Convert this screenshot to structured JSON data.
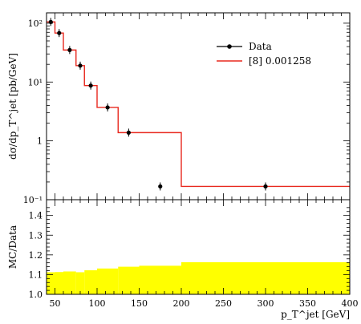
{
  "chart_data": [
    {
      "type": "line",
      "panel": "main",
      "ylabel": "dσ/dp_T^jet [pb/GeV]",
      "yscale": "log",
      "ylim": [
        0.1,
        150
      ],
      "xlim": [
        40,
        400
      ],
      "y_tick_labels": [
        "10⁻¹",
        "1",
        "10¹",
        "10²"
      ],
      "legend": {
        "placement": "top-right",
        "entries": [
          "Data",
          "[8] 0.001258"
        ]
      },
      "series": [
        {
          "name": "Data",
          "style": "points",
          "color": "#000000",
          "points": [
            {
              "x": 45,
              "y": 105
            },
            {
              "x": 55,
              "y": 68
            },
            {
              "x": 67.5,
              "y": 35
            },
            {
              "x": 80,
              "y": 19
            },
            {
              "x": 92.5,
              "y": 8.7
            },
            {
              "x": 112.5,
              "y": 3.7
            },
            {
              "x": 137.5,
              "y": 1.38
            },
            {
              "x": 175,
              "y": 0.168
            },
            {
              "x": 300,
              "y": 0.168
            }
          ]
        },
        {
          "name": "[8] 0.001258",
          "style": "step",
          "color": "#e8281e",
          "bins": [
            {
              "x0": 40,
              "x1": 50,
              "y": 105
            },
            {
              "x0": 50,
              "x1": 60,
              "y": 68
            },
            {
              "x0": 60,
              "x1": 75,
              "y": 35
            },
            {
              "x0": 75,
              "x1": 85,
              "y": 19
            },
            {
              "x0": 85,
              "x1": 100,
              "y": 8.7
            },
            {
              "x0": 100,
              "x1": 125,
              "y": 3.7
            },
            {
              "x0": 125,
              "x1": 150,
              "y": 1.38
            },
            {
              "x0": 150,
              "x1": 200,
              "y": 1.38
            },
            {
              "x0": 200,
              "x1": 400,
              "y": 0.168
            }
          ]
        }
      ]
    },
    {
      "type": "area",
      "panel": "ratio",
      "ylabel": "MC/Data",
      "xlabel": "p_T^jet [GeV]",
      "xlim": [
        40,
        400
      ],
      "ylim": [
        1.0,
        1.48
      ],
      "x_ticks": [
        50,
        100,
        150,
        200,
        250,
        300,
        350,
        400
      ],
      "y_ticks": [
        1.0,
        1.1,
        1.2,
        1.3,
        1.4
      ],
      "x_tick_labels": [
        "50",
        "100",
        "150",
        "200",
        "250",
        "300",
        "350",
        "400"
      ],
      "y_tick_labels": [
        "1.0",
        "1.1",
        "1.2",
        "1.3",
        "1.4"
      ],
      "color": "#ffff00",
      "bins": [
        {
          "x0": 40,
          "x1": 50,
          "y": 1.112
        },
        {
          "x0": 50,
          "x1": 60,
          "y": 1.113
        },
        {
          "x0": 60,
          "x1": 75,
          "y": 1.116
        },
        {
          "x0": 75,
          "x1": 85,
          "y": 1.112
        },
        {
          "x0": 85,
          "x1": 100,
          "y": 1.122
        },
        {
          "x0": 100,
          "x1": 125,
          "y": 1.131
        },
        {
          "x0": 125,
          "x1": 150,
          "y": 1.14
        },
        {
          "x0": 150,
          "x1": 200,
          "y": 1.145
        },
        {
          "x0": 200,
          "x1": 400,
          "y": 1.163
        }
      ]
    }
  ]
}
